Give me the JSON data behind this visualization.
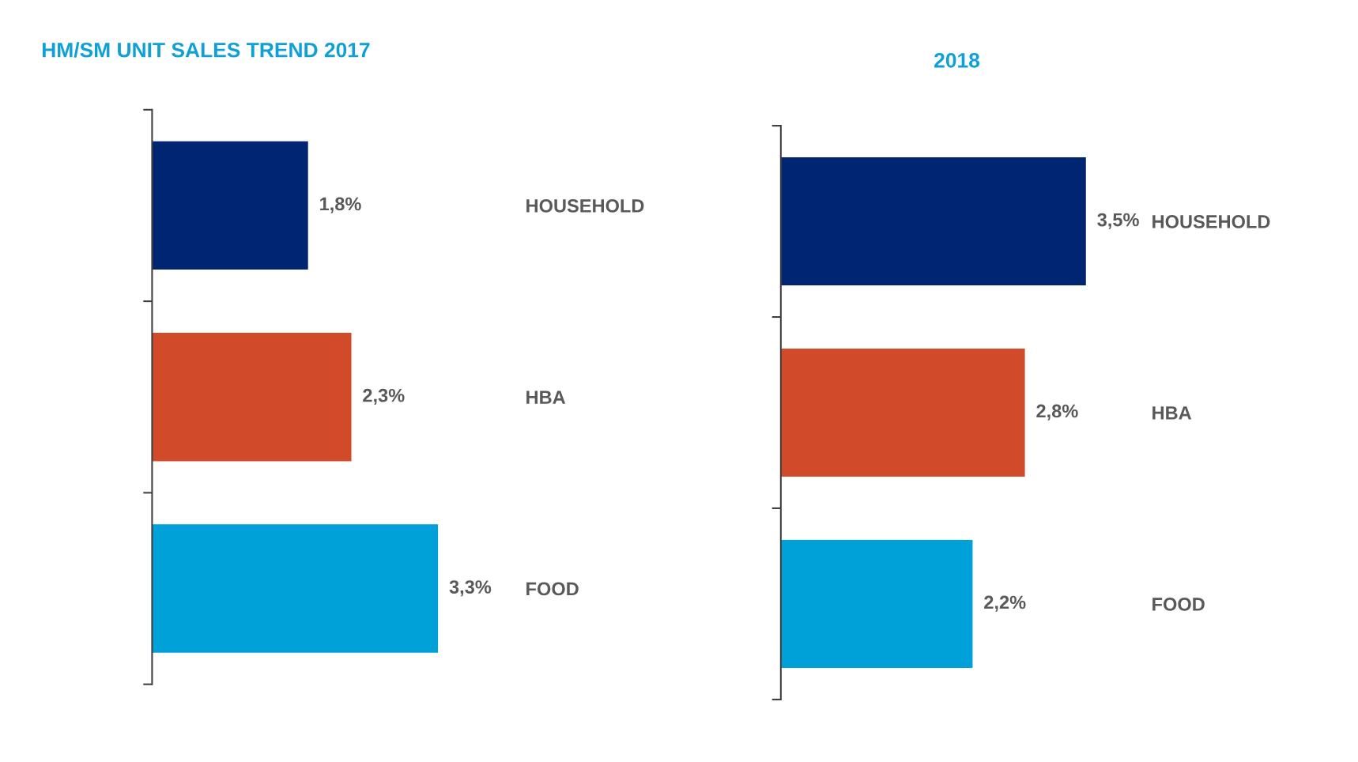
{
  "chart_data": [
    {
      "type": "bar",
      "orientation": "horizontal",
      "title": "HM/SM UNIT SALES TREND 2017",
      "categories": [
        "HOUSEHOLD",
        "HBA",
        "FOOD"
      ],
      "values": [
        1.8,
        2.3,
        3.3
      ],
      "colors": [
        "#002673",
        "#d14a2a",
        "#00a0d8"
      ],
      "value_labels": [
        "1,8%",
        "2,3%",
        "3,3%"
      ],
      "tick_labels": "y"
    },
    {
      "type": "bar",
      "orientation": "horizontal",
      "title": "2018",
      "categories": [
        "HOUSEHOLD",
        "HBA",
        "FOOD"
      ],
      "values": [
        3.5,
        2.8,
        2.2
      ],
      "colors": [
        "#002673",
        "#d14a2a",
        "#00a0d8"
      ],
      "value_labels": [
        "3,5%",
        "2,8%",
        "2,2%"
      ],
      "tick_labels": "y"
    }
  ]
}
